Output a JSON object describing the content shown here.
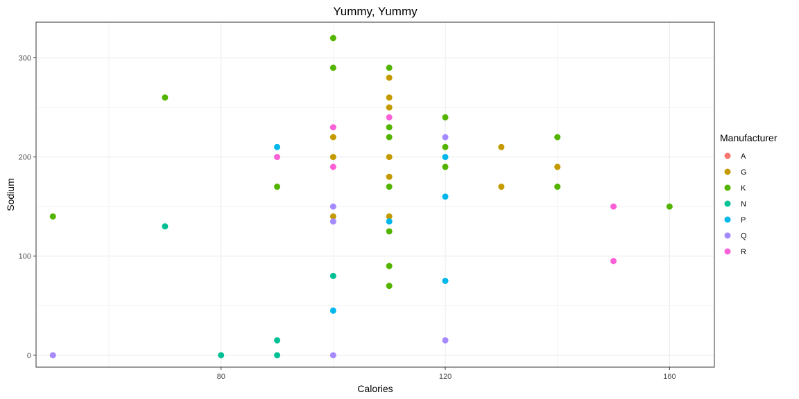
{
  "chart_data": {
    "type": "scatter",
    "title": "Yummy, Yummy",
    "xlabel": "Calories",
    "ylabel": "Sodium",
    "xlim": [
      47,
      168
    ],
    "ylim": [
      -12,
      336
    ],
    "x_ticks": [
      80,
      120,
      160
    ],
    "y_ticks": [
      0,
      100,
      200,
      300
    ],
    "x_minor": [
      60,
      100,
      140
    ],
    "y_minor": [
      50,
      150,
      250
    ],
    "grid": true,
    "legend_title": "Manufacturer",
    "legend_position": "right",
    "series": [
      {
        "name": "A",
        "color": "#F8766D",
        "points": []
      },
      {
        "name": "G",
        "color": "#C49A00",
        "points": [
          [
            100,
            220
          ],
          [
            100,
            200
          ],
          [
            100,
            140
          ],
          [
            110,
            280
          ],
          [
            110,
            260
          ],
          [
            110,
            250
          ],
          [
            110,
            200
          ],
          [
            110,
            180
          ],
          [
            110,
            140
          ],
          [
            130,
            210
          ],
          [
            130,
            170
          ],
          [
            140,
            190
          ]
        ]
      },
      {
        "name": "K",
        "color": "#53B400",
        "points": [
          [
            50,
            140
          ],
          [
            70,
            260
          ],
          [
            90,
            170
          ],
          [
            100,
            320
          ],
          [
            100,
            290
          ],
          [
            110,
            290
          ],
          [
            110,
            230
          ],
          [
            110,
            220
          ],
          [
            110,
            170
          ],
          [
            110,
            125
          ],
          [
            110,
            90
          ],
          [
            110,
            70
          ],
          [
            120,
            240
          ],
          [
            120,
            210
          ],
          [
            120,
            190
          ],
          [
            140,
            220
          ],
          [
            140,
            170
          ],
          [
            160,
            150
          ]
        ]
      },
      {
        "name": "N",
        "color": "#00C094",
        "points": [
          [
            70,
            130
          ],
          [
            80,
            0
          ],
          [
            90,
            15
          ],
          [
            90,
            0
          ],
          [
            100,
            80
          ]
        ]
      },
      {
        "name": "P",
        "color": "#00B6EB",
        "points": [
          [
            90,
            210
          ],
          [
            100,
            45
          ],
          [
            110,
            135
          ],
          [
            120,
            200
          ],
          [
            120,
            160
          ],
          [
            120,
            75
          ]
        ]
      },
      {
        "name": "Q",
        "color": "#A58AFF",
        "points": [
          [
            50,
            0
          ],
          [
            100,
            150
          ],
          [
            100,
            135
          ],
          [
            100,
            0
          ],
          [
            120,
            220
          ],
          [
            120,
            15
          ]
        ]
      },
      {
        "name": "R",
        "color": "#FB61D7",
        "points": [
          [
            90,
            200
          ],
          [
            100,
            230
          ],
          [
            100,
            190
          ],
          [
            110,
            240
          ],
          [
            150,
            150
          ],
          [
            150,
            95
          ]
        ]
      }
    ]
  }
}
